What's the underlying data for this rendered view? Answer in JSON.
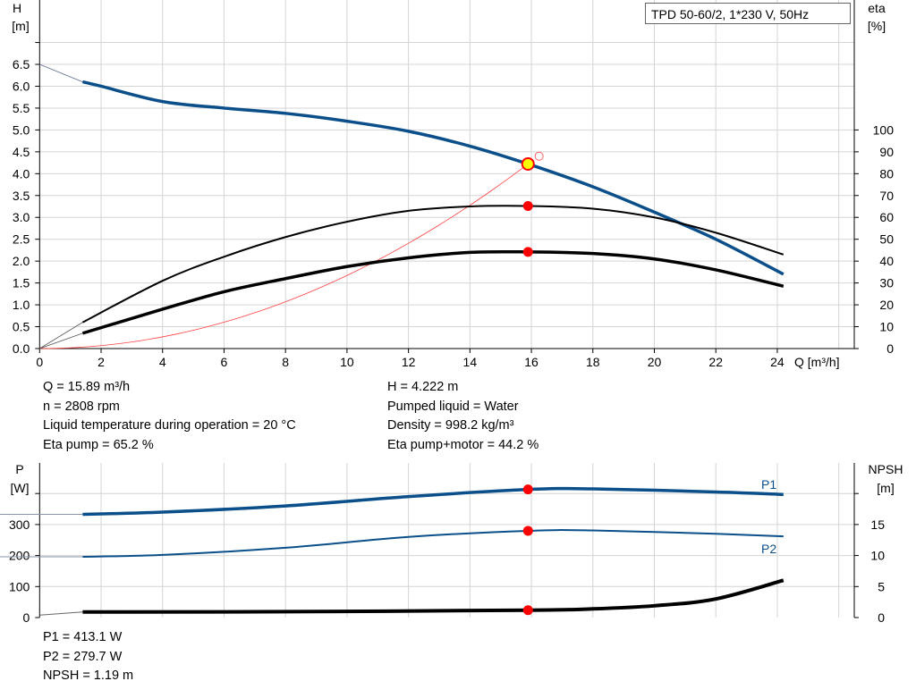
{
  "chart_data": [
    {
      "type": "line",
      "title": "TPD 50-60/2, 1*230 V, 50Hz",
      "xlabel": "Q [m³/h]",
      "ylabel_left": [
        "H",
        "[m]"
      ],
      "ylabel_right": [
        "eta",
        "[%]"
      ],
      "xlim": [
        0,
        26
      ],
      "ylim_left": [
        0,
        7
      ],
      "ylim_right": [
        0,
        100
      ],
      "x_ticks": [
        "0",
        "2",
        "4",
        "6",
        "8",
        "10",
        "12",
        "14",
        "16",
        "18",
        "20",
        "22",
        "24"
      ],
      "y_ticks_left": [
        "0.0",
        "0.5",
        "1.0",
        "1.5",
        "2.0",
        "2.5",
        "3.0",
        "3.5",
        "4.0",
        "4.5",
        "5.0",
        "5.5",
        "6.0",
        "6.5"
      ],
      "y_ticks_right": [
        "0",
        "10",
        "20",
        "30",
        "40",
        "50",
        "60",
        "70",
        "80",
        "90",
        "100"
      ],
      "grid": true,
      "colors": {
        "head": "#0b4f8a",
        "eta": "#000000",
        "system": "#ff0000",
        "duty_point": "#ff0000",
        "duty_fill": "#ffff00"
      },
      "series": [
        {
          "key": "H",
          "axis": "left",
          "x": [
            1.4,
            2,
            4,
            6,
            8,
            10,
            12,
            14,
            15.89,
            18,
            20,
            22,
            24.2
          ],
          "y": [
            6.1,
            6.0,
            5.65,
            5.5,
            5.38,
            5.2,
            4.97,
            4.63,
            4.222,
            3.7,
            3.12,
            2.5,
            1.7
          ]
        },
        {
          "key": "eta_pump",
          "axis": "right",
          "x": [
            1.4,
            4,
            6,
            8,
            10,
            12,
            14,
            15.89,
            18,
            20,
            22,
            24.2
          ],
          "y": [
            12,
            31,
            42,
            51,
            58,
            63,
            65,
            65.2,
            64,
            60,
            53,
            43
          ]
        },
        {
          "key": "eta_pump_motor",
          "axis": "right",
          "x": [
            1.4,
            4,
            6,
            8,
            10,
            12,
            14,
            15.89,
            18,
            20,
            22,
            24.2
          ],
          "y": [
            7,
            18,
            26,
            32,
            37.5,
            41.5,
            44,
            44.2,
            43.5,
            41,
            36,
            28.5
          ]
        }
      ],
      "duty_point": {
        "Q": 15.89,
        "H": 4.222,
        "eta_pump": 65.2,
        "eta_pump_motor": 44.2
      }
    },
    {
      "type": "line",
      "xlim": [
        0,
        26
      ],
      "ylabel_left": [
        "P",
        "[W]"
      ],
      "ylabel_right": [
        "NPSH",
        "[m]"
      ],
      "ylim_left": [
        0,
        450
      ],
      "ylim_right": [
        0,
        22.5
      ],
      "y_ticks_left": [
        "0",
        "100",
        "200",
        "300"
      ],
      "y_ticks_right": [
        "0",
        "5",
        "10",
        "15"
      ],
      "grid": true,
      "series": [
        {
          "name": "P1",
          "axis": "left",
          "x": [
            1.4,
            4,
            8,
            12,
            15.89,
            18,
            22,
            24.2
          ],
          "y": [
            333,
            340,
            360,
            390,
            413.1,
            415,
            405,
            397
          ]
        },
        {
          "name": "P2",
          "axis": "left",
          "x": [
            1.4,
            4,
            8,
            12,
            15.89,
            18,
            22,
            24.2
          ],
          "y": [
            196,
            202,
            225,
            260,
            279.7,
            281,
            270,
            262
          ]
        },
        {
          "key": "NPSH",
          "axis": "right",
          "x": [
            1.4,
            8,
            15.89,
            18,
            20,
            22,
            24.2
          ],
          "y": [
            0.9,
            0.95,
            1.19,
            1.4,
            1.9,
            3.0,
            6.0
          ]
        }
      ]
    }
  ],
  "info_top": {
    "q": "Q = 15.89 m³/h",
    "n": "n = 2808 rpm",
    "temp": "Liquid temperature during operation = 20 °C",
    "eta_pump": "Eta pump = 65.2 %",
    "h": "H = 4.222 m",
    "liquid": "Pumped liquid = Water",
    "density": "Density = 998.2 kg/m³",
    "eta_pm": "Eta pump+motor = 44.2 %"
  },
  "info_bottom": {
    "p1": "P1 = 413.1 W",
    "p2": "P2 = 279.7 W",
    "npsh": "NPSH = 1.19 m"
  }
}
